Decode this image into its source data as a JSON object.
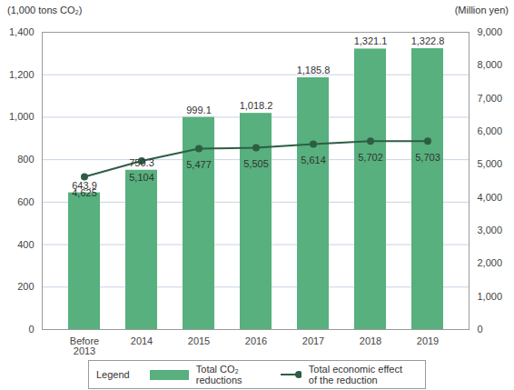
{
  "chart_data": {
    "type": "bar",
    "categories": [
      "Before 2013",
      "2014",
      "2015",
      "2016",
      "2017",
      "2018",
      "2019"
    ],
    "y_label": "(1,000 tons CO₂)",
    "y2_label": "(Million yen)",
    "ylim": [
      0,
      1400
    ],
    "yticks": [
      0,
      200,
      400,
      600,
      800,
      {
        "value": 1000,
        "label": "1,000"
      },
      {
        "value": 1200,
        "label": "1,200"
      },
      {
        "value": 1400,
        "label": "1,400"
      }
    ],
    "y2lim": [
      0,
      9000
    ],
    "y2ticks": [
      0,
      {
        "value": 1000,
        "label": "1,000"
      },
      {
        "value": 2000,
        "label": "2,000"
      },
      {
        "value": 3000,
        "label": "3,000"
      },
      {
        "value": 4000,
        "label": "4,000"
      },
      {
        "value": 5000,
        "label": "5,000"
      },
      {
        "value": 6000,
        "label": "6,000"
      },
      {
        "value": 7000,
        "label": "7,000"
      },
      {
        "value": 8000,
        "label": "8,000"
      },
      {
        "value": 9000,
        "label": "9,000"
      }
    ],
    "grid": true,
    "data_labels": true,
    "legend": "bottom",
    "legend_title": "Legend",
    "series": [
      {
        "name": "Total CO₂ reductions",
        "type": "bar",
        "color": "#57b07d",
        "values": [
          643.9,
          750.3,
          999.1,
          1018.2,
          1185.8,
          1321.1,
          1322.8
        ],
        "value_labels": [
          "643.9",
          "750.3",
          "999.1",
          "1,018.2",
          "1,185.8",
          "1,321.1",
          "1,322.8"
        ]
      },
      {
        "name": "Total economic effect of the reduction",
        "type": "line",
        "axis": "y2",
        "color": "#2e5d44",
        "marker": "circle",
        "values": [
          4625,
          5104,
          5477,
          5505,
          5614,
          5702,
          5703
        ],
        "value_labels": [
          "4,625",
          "5,104",
          "5,477",
          "5,505",
          "5,614",
          "5,702",
          "5,703"
        ]
      }
    ]
  }
}
